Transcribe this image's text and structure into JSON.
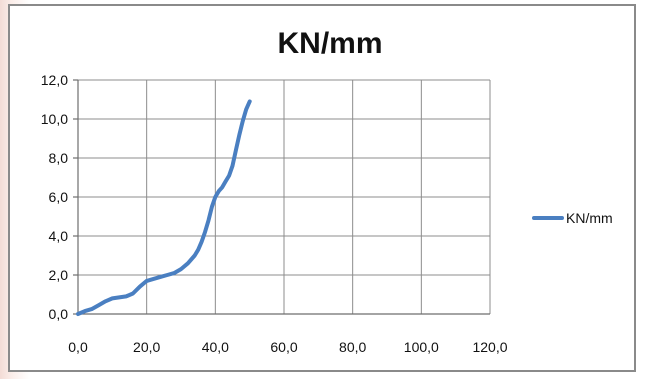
{
  "chart_data": {
    "type": "line",
    "title": "KN/mm",
    "xlabel": "",
    "ylabel": "",
    "xlim": [
      0,
      120
    ],
    "ylim": [
      0,
      12
    ],
    "x_ticks": [
      "0,0",
      "20,0",
      "40,0",
      "60,0",
      "80,0",
      "100,0",
      "120,0"
    ],
    "y_ticks": [
      "0,0",
      "2,0",
      "4,0",
      "6,0",
      "8,0",
      "10,0",
      "12,0"
    ],
    "grid": true,
    "legend_position": "right",
    "series": [
      {
        "name": "KN/mm",
        "color": "#4a7fc1",
        "x": [
          0,
          2,
          4,
          6,
          8,
          10,
          12,
          14,
          16,
          18,
          20,
          22,
          24,
          26,
          28,
          30,
          32,
          34,
          35,
          36,
          37,
          38,
          39,
          40,
          41,
          42,
          43,
          44,
          45,
          46,
          47,
          48,
          49,
          50
        ],
        "y": [
          0,
          0.15,
          0.25,
          0.45,
          0.65,
          0.8,
          0.85,
          0.9,
          1.05,
          1.4,
          1.7,
          1.8,
          1.9,
          2.0,
          2.1,
          2.3,
          2.6,
          3.0,
          3.3,
          3.7,
          4.2,
          4.8,
          5.5,
          6.0,
          6.3,
          6.5,
          6.8,
          7.1,
          7.6,
          8.4,
          9.2,
          9.9,
          10.5,
          10.9
        ]
      }
    ]
  }
}
